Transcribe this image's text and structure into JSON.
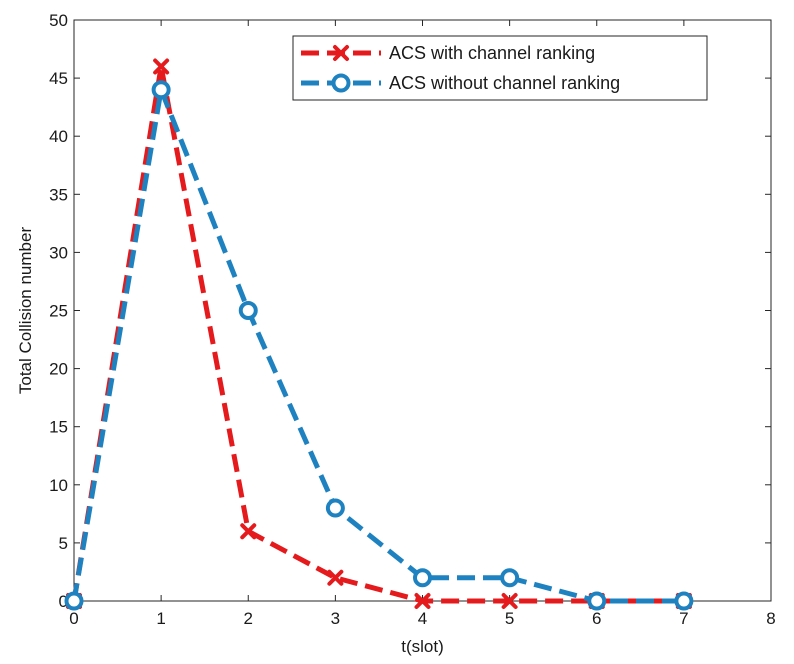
{
  "chart_data": {
    "type": "line",
    "title": "",
    "xlabel": "t(slot)",
    "ylabel": "Total Collision number",
    "xlim": [
      0,
      8
    ],
    "ylim": [
      0,
      50
    ],
    "xticks": [
      "0",
      "1",
      "2",
      "3",
      "4",
      "5",
      "6",
      "7",
      "8"
    ],
    "yticks": [
      "0",
      "5",
      "10",
      "15",
      "20",
      "25",
      "30",
      "35",
      "40",
      "45",
      "50"
    ],
    "grid": false,
    "legend_position": "top-right",
    "series": [
      {
        "name": "ACS with channel ranking",
        "color": "#e41a1c",
        "marker": "x",
        "line_style": "dashed",
        "x": [
          0,
          1,
          2,
          3,
          4,
          5,
          6,
          7
        ],
        "values": [
          0,
          46,
          6,
          2,
          0,
          0,
          0,
          0
        ]
      },
      {
        "name": "ACS without channel ranking",
        "color": "#1f82c0",
        "marker": "circle",
        "line_style": "dashed",
        "x": [
          0,
          1,
          2,
          3,
          4,
          5,
          6,
          7
        ],
        "values": [
          0,
          44,
          25,
          8,
          2,
          2,
          0,
          0
        ]
      }
    ]
  }
}
